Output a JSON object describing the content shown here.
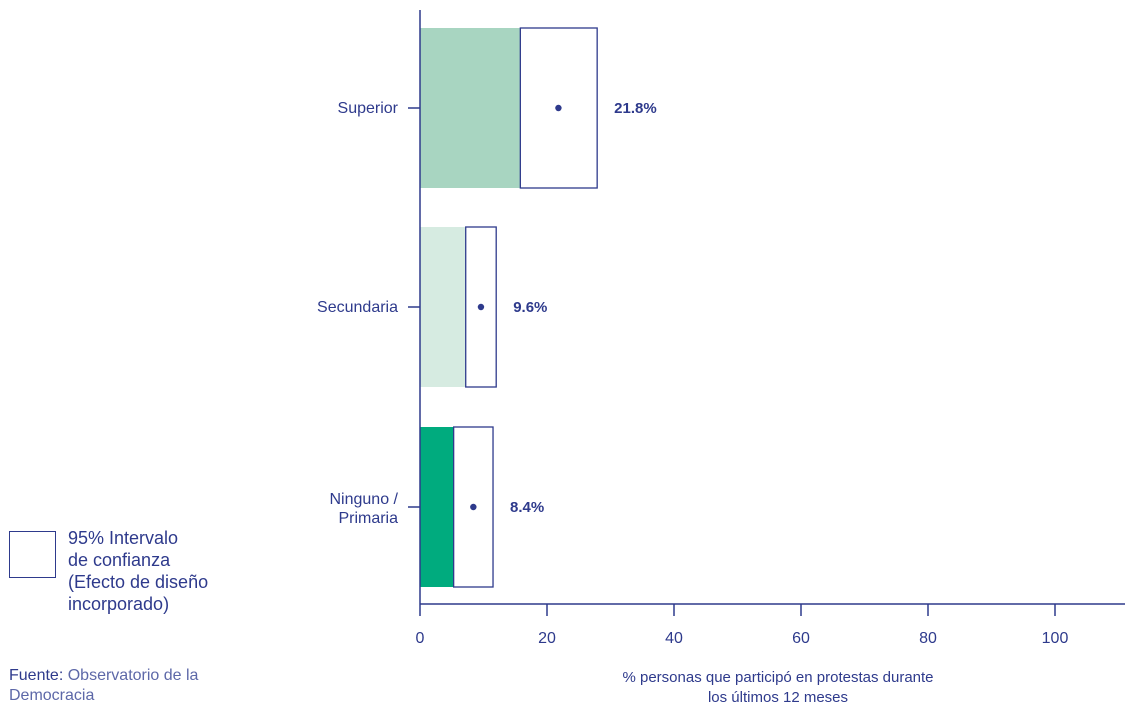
{
  "chart_data": {
    "type": "bar",
    "orientation": "horizontal",
    "categories": [
      "Superior",
      "Secundaria",
      "Ninguno / Primaria"
    ],
    "values": [
      21.8,
      9.6,
      8.4
    ],
    "value_labels": [
      "21.8%",
      "9.6%",
      "8.4%"
    ],
    "ci_low": [
      15.8,
      7.2,
      5.3
    ],
    "ci_high": [
      27.9,
      12.0,
      11.5
    ],
    "bar_colors": [
      "#a8d5c1",
      "#d6ebe1",
      "#00ab7e"
    ],
    "xlim": [
      0,
      110
    ],
    "x_ticks": [
      0,
      20,
      40,
      60,
      80,
      100
    ],
    "xlabel": "% personas que participó en protestas durante los últimos 12 meses",
    "xlabel_lines": [
      "% personas que participó en protestas durante",
      "los últimos 12 meses"
    ],
    "grid": false
  },
  "colors": {
    "axis": "#2e3a8c",
    "text": "#2e3a8c",
    "ci_box_fill": "#ffffff"
  },
  "legend": {
    "text": "95% Intervalo\nde confianza\n(Efecto de diseño\nincorporado)"
  },
  "source": {
    "key": "Fuente:",
    "text": "Observatorio de la Democracia"
  }
}
